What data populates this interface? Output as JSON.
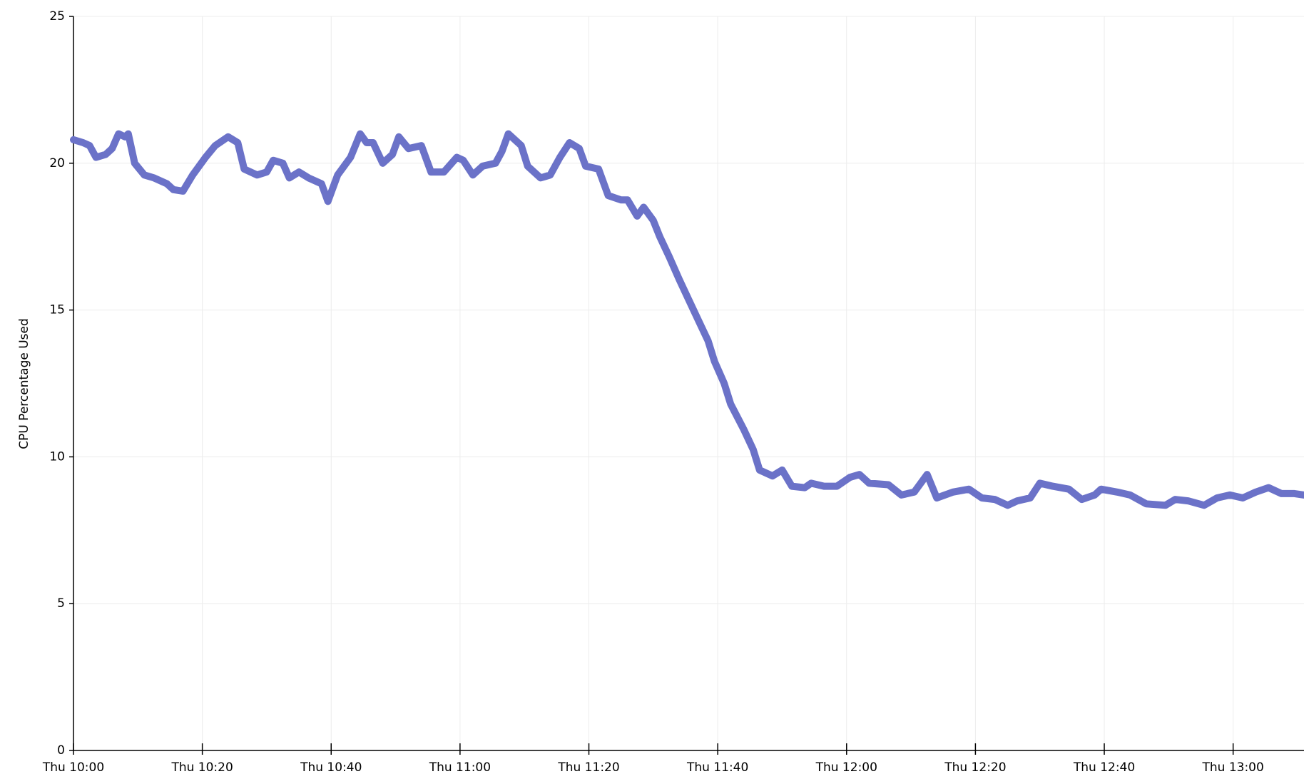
{
  "chart_data": {
    "type": "line",
    "y_label": "CPU Percentage Used",
    "x": [
      600,
      601.5,
      602.5,
      603.5,
      605,
      606,
      607,
      608,
      608.5,
      609.5,
      611,
      612.5,
      614.5,
      615.5,
      617,
      618.5,
      620.5,
      622,
      624,
      625.5,
      626.5,
      628.5,
      630,
      631,
      632.5,
      633.5,
      635,
      636.5,
      638.5,
      639.5,
      641,
      643,
      644.5,
      645.5,
      646.5,
      648,
      649.5,
      650.5,
      652,
      654,
      655.5,
      657.5,
      659.5,
      660.5,
      662,
      663.5,
      665.5,
      666.5,
      667.5,
      669.5,
      670.5,
      672.5,
      674,
      675.5,
      677,
      678.5,
      679.5,
      681.5,
      683,
      685,
      686,
      687.5,
      688.5,
      690,
      691,
      692.5,
      694,
      695.5,
      697,
      698.5,
      699.5,
      701,
      702,
      704,
      705.5,
      706.5,
      708.5,
      710,
      711.5,
      713.5,
      714.5,
      716.5,
      718.5,
      720.5,
      722,
      723.5,
      726.5,
      728.5,
      730.5,
      732.5,
      734,
      736.5,
      739,
      741,
      743,
      745,
      746.5,
      748.5,
      750,
      752,
      754.5,
      756.5,
      758.5,
      759.5,
      762,
      764,
      766.5,
      769.5,
      771,
      773,
      775.5,
      777.5,
      779.5,
      781.5,
      783.5,
      785.5,
      787.5,
      789.5,
      791
    ],
    "series": [
      {
        "name": "CPU",
        "color": "#6b72c8",
        "values": [
          20.8,
          20.7,
          20.6,
          20.2,
          20.3,
          20.5,
          21.0,
          20.9,
          21.0,
          20.0,
          19.6,
          19.5,
          19.3,
          19.1,
          19.05,
          19.6,
          20.2,
          20.6,
          20.9,
          20.7,
          19.8,
          19.6,
          19.7,
          20.1,
          20.0,
          19.5,
          19.7,
          19.5,
          19.3,
          18.7,
          19.6,
          20.2,
          21.0,
          20.7,
          20.7,
          20.0,
          20.3,
          20.9,
          20.5,
          20.6,
          19.7,
          19.7,
          20.2,
          20.1,
          19.6,
          19.9,
          20.0,
          20.4,
          21.0,
          20.6,
          19.9,
          19.5,
          19.6,
          20.2,
          20.7,
          20.5,
          19.9,
          19.8,
          18.9,
          18.75,
          18.75,
          18.2,
          18.5,
          18.05,
          17.5,
          16.8,
          16.05,
          15.35,
          14.65,
          13.95,
          13.25,
          12.5,
          11.8,
          10.95,
          10.25,
          9.55,
          9.35,
          9.55,
          9.0,
          8.95,
          9.1,
          9.0,
          9.0,
          9.3,
          9.4,
          9.1,
          9.05,
          8.7,
          8.8,
          9.4,
          8.6,
          8.8,
          8.9,
          8.6,
          8.55,
          8.35,
          8.5,
          8.6,
          9.1,
          9.0,
          8.9,
          8.55,
          8.7,
          8.9,
          8.8,
          8.7,
          8.4,
          8.35,
          8.55,
          8.5,
          8.35,
          8.6,
          8.7,
          8.6,
          8.8,
          8.95,
          8.75,
          8.75,
          8.7
        ]
      }
    ],
    "xlim": [
      600,
      791
    ],
    "ylim": [
      0,
      25
    ],
    "xticks": [
      {
        "value": 600,
        "label": "Thu 10:00"
      },
      {
        "value": 620,
        "label": "Thu 10:20"
      },
      {
        "value": 640,
        "label": "Thu 10:40"
      },
      {
        "value": 660,
        "label": "Thu 11:00"
      },
      {
        "value": 680,
        "label": "Thu 11:20"
      },
      {
        "value": 700,
        "label": "Thu 11:40"
      },
      {
        "value": 720,
        "label": "Thu 12:00"
      },
      {
        "value": 740,
        "label": "Thu 12:20"
      },
      {
        "value": 760,
        "label": "Thu 12:40"
      },
      {
        "value": 780,
        "label": "Thu 13:00"
      }
    ],
    "yticks": [
      0,
      5,
      10,
      15,
      20,
      25
    ],
    "grid": true
  }
}
